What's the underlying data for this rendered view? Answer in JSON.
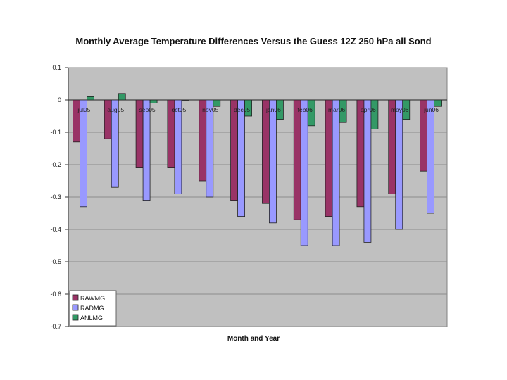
{
  "chart_data": {
    "type": "bar",
    "title": "Monthly Average Temperature Differences Versus the Guess 12Z 250 hPa all Sond",
    "xlabel": "Month and Year",
    "ylabel": "",
    "ylim": [
      -0.7,
      0.1
    ],
    "yticks": [
      "0.1",
      "0",
      "-0.1",
      "-0.2",
      "-0.3",
      "-0.4",
      "-0.5",
      "-0.6",
      "-0.7"
    ],
    "ytick_values": [
      0.1,
      0,
      -0.1,
      -0.2,
      -0.3,
      -0.4,
      -0.5,
      -0.6,
      -0.7
    ],
    "grid": true,
    "legend_position": "bottom-left",
    "categories": [
      "jul05",
      "aug05",
      "sep05",
      "oct05",
      "nov05",
      "dec05",
      "jan06",
      "feb06",
      "mar06",
      "apr06",
      "may06",
      "jun06"
    ],
    "series": [
      {
        "name": "RAWMG",
        "color": "#993366",
        "values": [
          -0.13,
          -0.12,
          -0.21,
          -0.21,
          -0.25,
          -0.31,
          -0.32,
          -0.37,
          -0.36,
          -0.33,
          -0.29,
          -0.22
        ]
      },
      {
        "name": "RADMG",
        "color": "#9999ff",
        "values": [
          -0.33,
          -0.27,
          -0.31,
          -0.29,
          -0.3,
          -0.36,
          -0.38,
          -0.45,
          -0.45,
          -0.44,
          -0.4,
          -0.35
        ]
      },
      {
        "name": "ANLMG",
        "color": "#339966",
        "values": [
          0.01,
          0.02,
          -0.01,
          0.0,
          -0.02,
          -0.05,
          -0.06,
          -0.08,
          -0.07,
          -0.09,
          -0.06,
          -0.02
        ]
      }
    ],
    "plot_background": "#c0c0c0",
    "gridline_color": "#8c8c8c"
  }
}
